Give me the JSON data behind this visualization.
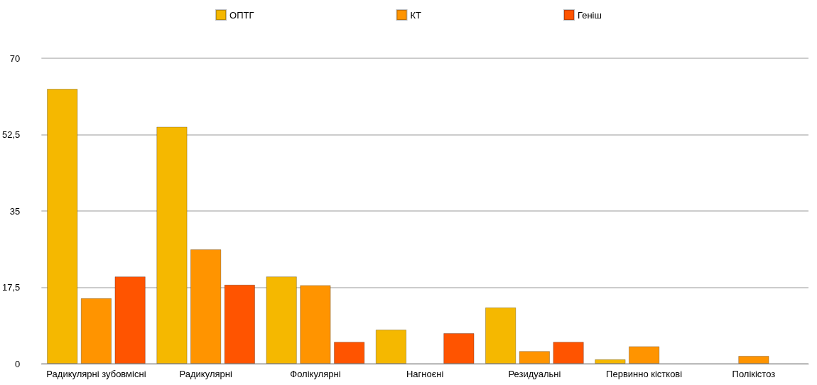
{
  "chart_data": {
    "type": "bar",
    "categories": [
      "Радикулярні зубовмісні",
      "Радикулярні",
      "Фолікулярні",
      "Нагноєні",
      "Резидуальні",
      "Первинно кісткові",
      "Полікістоз"
    ],
    "series": [
      {
        "name": "ОПТГ",
        "color": "#f5b800",
        "values": [
          63,
          54.3,
          20,
          7.8,
          12.9,
          1,
          null
        ]
      },
      {
        "name": "КТ",
        "color": "#ff9400",
        "values": [
          15,
          26.2,
          18,
          null,
          2.9,
          4,
          1.8
        ]
      },
      {
        "name": "Геніш",
        "color": "#ff5400",
        "values": [
          20,
          18.1,
          5,
          7,
          5,
          null,
          null
        ]
      }
    ],
    "ylim": [
      0,
      70
    ],
    "yticks": [
      0,
      {
        "value": 17.5,
        "label": "17,5"
      },
      35,
      {
        "value": 52.5,
        "label": "52,5"
      },
      70
    ],
    "grid": "y",
    "legend": "top"
  }
}
